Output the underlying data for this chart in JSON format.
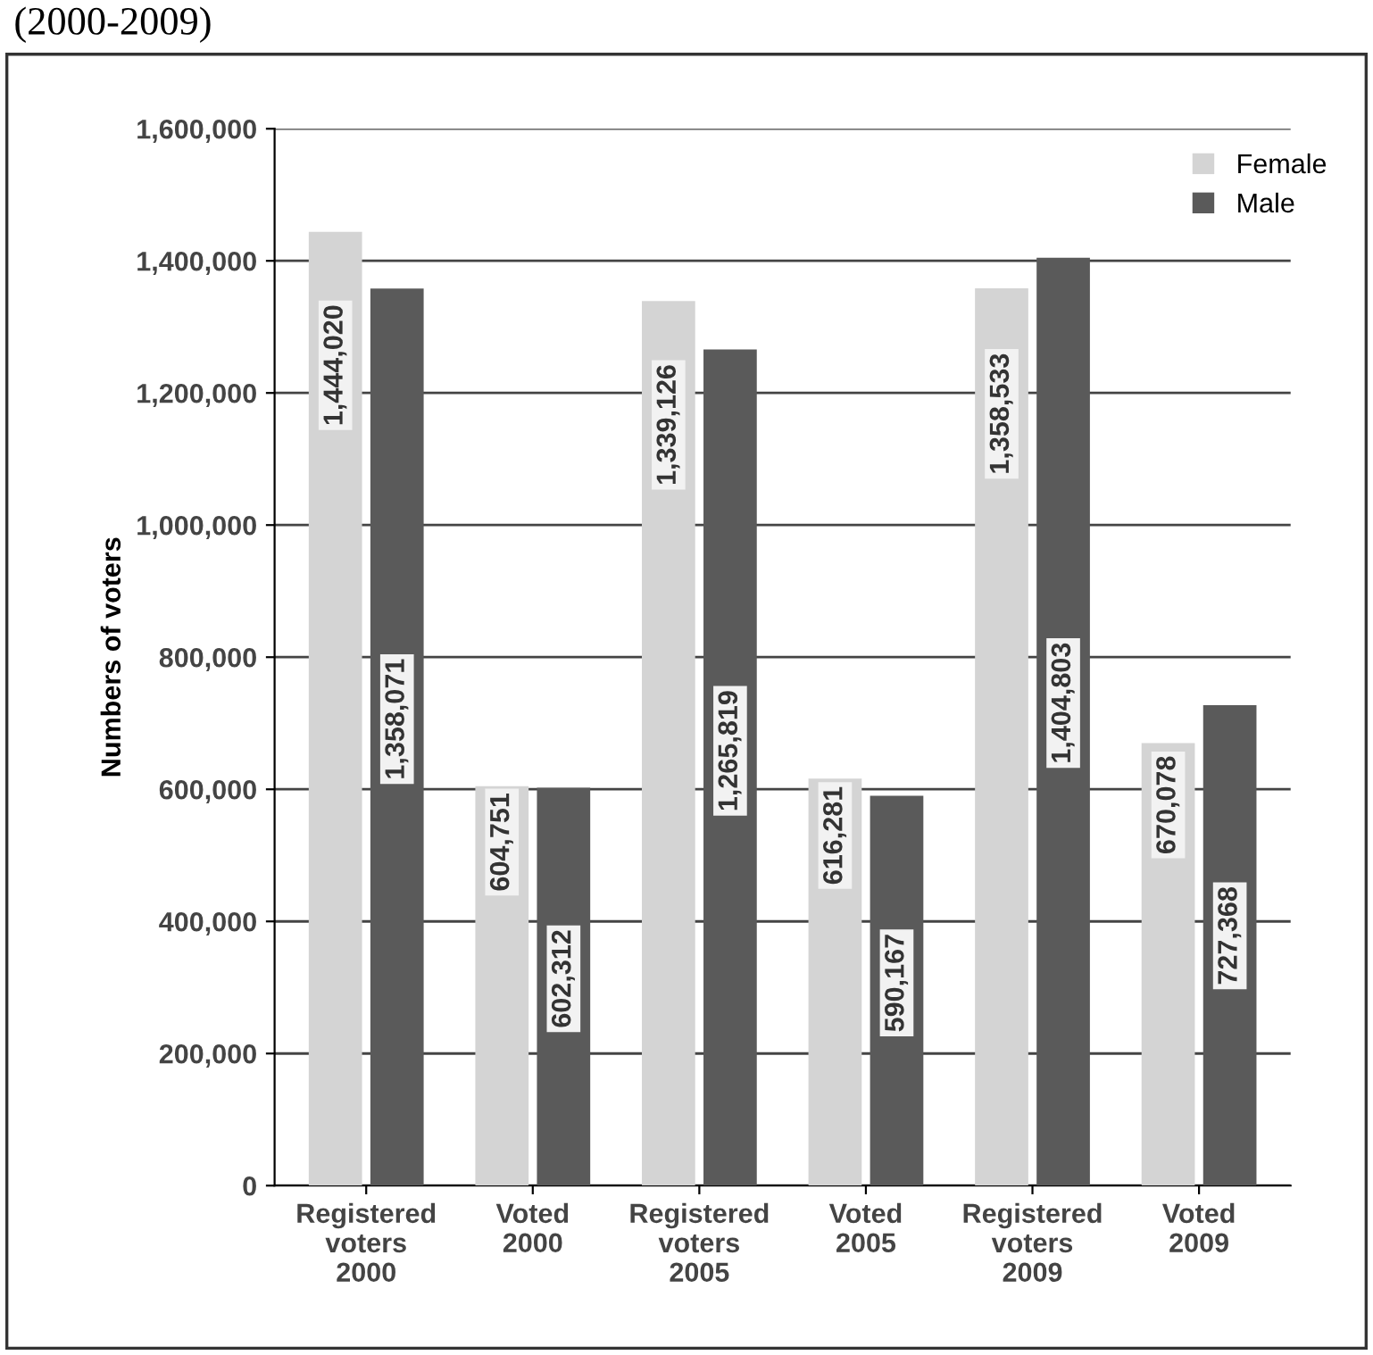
{
  "chart_data": {
    "type": "bar",
    "title": "(2000-2009)",
    "ylabel": "Numbers of voters",
    "categories": [
      "Registered\nvoters\n2000",
      "Voted\n2000",
      "Registered\nvoters\n2005",
      "Voted\n2005",
      "Registered\nvoters\n2009",
      "Voted\n2009"
    ],
    "series": [
      {
        "name": "Female",
        "color": "#d4d4d4",
        "values": [
          1444020,
          604751,
          1339126,
          616281,
          1358533,
          670078
        ],
        "value_labels": [
          "1,444,020",
          "604,751",
          "1,339,126",
          "616,281",
          "1,358,533",
          "670,078"
        ]
      },
      {
        "name": "Male",
        "color": "#5a5a5a",
        "values": [
          1358071,
          602312,
          1265819,
          590167,
          1404803,
          727368
        ],
        "value_labels": [
          "1,358,071",
          "602,312",
          "1,265,819",
          "590,167",
          "1,404,803",
          "727,368"
        ]
      }
    ],
    "ylim": [
      0,
      1600000
    ],
    "yticks": [
      {
        "value": 0,
        "label": "0"
      },
      {
        "value": 200000,
        "label": "200,000"
      },
      {
        "value": 400000,
        "label": "400,000"
      },
      {
        "value": 600000,
        "label": "600,000"
      },
      {
        "value": 800000,
        "label": "800,000"
      },
      {
        "value": 1000000,
        "label": "1,000,000"
      },
      {
        "value": 1200000,
        "label": "1,200,000"
      },
      {
        "value": 1400000,
        "label": "1,400,000"
      },
      {
        "value": 1600000,
        "label": "1,600,000"
      }
    ],
    "grid": "y",
    "legend": "top right"
  }
}
